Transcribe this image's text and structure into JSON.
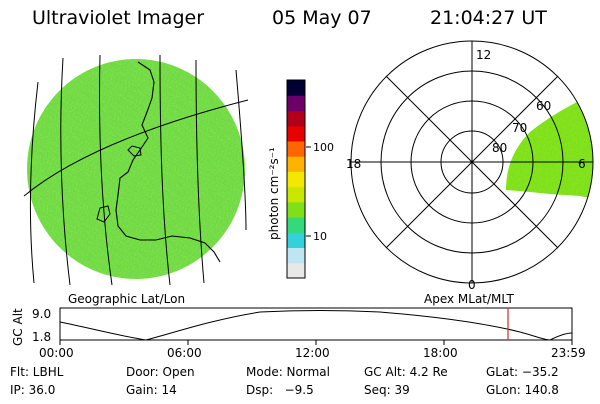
{
  "header": {
    "instrument": "Ultraviolet Imager",
    "date": "05 May 07",
    "time": "21:04:27 UT"
  },
  "colorbar": {
    "unit_label": "photon cm⁻²s⁻¹",
    "tick_100": "100",
    "tick_10": "10",
    "colors": [
      "#e8e8e8",
      "#bde6f2",
      "#33d1d9",
      "#33d97a",
      "#7fe01a",
      "#c8e600",
      "#f5e800",
      "#ffb300",
      "#ff6600",
      "#e60000",
      "#b3001a",
      "#6b006b",
      "#000033"
    ]
  },
  "geo_map": {
    "label": "Geographic Lat/Lon",
    "fill_color": "#6fd84a"
  },
  "polar_plot": {
    "label": "Apex MLat/MLT",
    "mlt_top": "12",
    "mlt_left": "18",
    "mlt_right": "6",
    "mlt_bottom": "0",
    "lat_80": "80",
    "lat_70": "70",
    "lat_60": "60"
  },
  "orbit_plot": {
    "axis_title": "GC Alt",
    "y_max": "9.0",
    "y_min": "1.8",
    "x_ticks": [
      "00:00",
      "06:00",
      "12:00",
      "18:00",
      "23:59"
    ],
    "current_time_marker_color": "#d62828"
  },
  "footer": {
    "row1": {
      "filter": "Flt: LBHL",
      "door": "Door: Open",
      "mode": "Mode: Normal",
      "gc_alt": "GC Alt: 4.2 Re",
      "glat": "GLat: −35.2"
    },
    "row2": {
      "ip": "IP: 36.0",
      "gain": "Gain: 14",
      "dsp": "Dsp:   −9.5",
      "seq": "Seq: 39",
      "glon": "GLon: 140.8"
    }
  }
}
